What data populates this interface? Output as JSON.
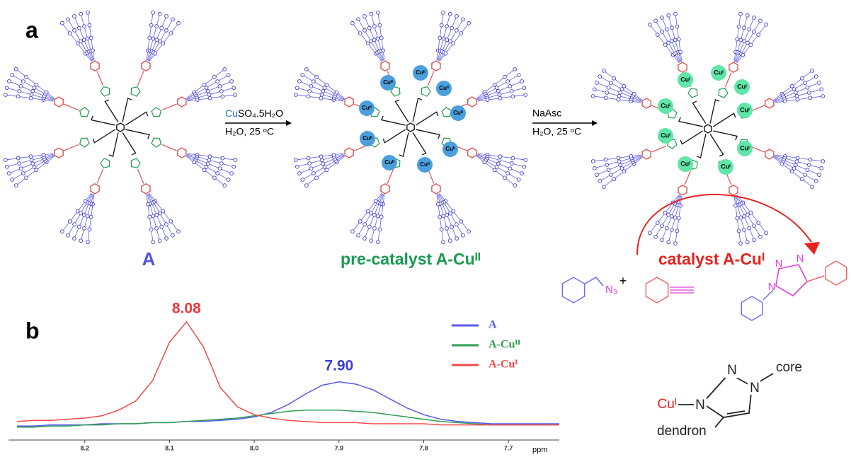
{
  "panel_a": {
    "label": "a",
    "reagent1_cu": "Cu",
    "reagent1_rest": "SO₄.5H₂O",
    "condition1": "H₂O, 25 ᵒC",
    "reagent2": "NaAsc",
    "condition2": "H₂O, 25 ᵒC",
    "compound_a": "A",
    "precatalyst": "pre-catalyst A-Cuᴵᴵ",
    "catalyst": "catalyst A-Cuᴵ",
    "cu_ii": "Cuᴵᴵ",
    "cu_i": "Cuᴵ",
    "azide": "N₃",
    "plus": "+",
    "nitrogen": "N"
  },
  "structure": {
    "copper": "Cuᴵ",
    "nitrogen": "N",
    "core": "core",
    "dendron": "dendron"
  },
  "panel_b": {
    "label": "b"
  },
  "chart_data": {
    "type": "line",
    "x_label": "ppm",
    "x": [
      8.28,
      8.26,
      8.24,
      8.22,
      8.2,
      8.18,
      8.16,
      8.14,
      8.12,
      8.1,
      8.08,
      8.06,
      8.04,
      8.02,
      8,
      7.98,
      7.96,
      7.94,
      7.92,
      7.9,
      7.88,
      7.86,
      7.84,
      7.82,
      7.8,
      7.78,
      7.76,
      7.74,
      7.72,
      7.7,
      7.68,
      7.66,
      7.64
    ],
    "series": [
      {
        "name": "A",
        "color": "#5a5af0",
        "values": [
          8,
          8,
          9,
          9,
          9,
          10,
          10,
          10,
          11,
          11,
          12,
          12,
          13,
          14,
          16,
          20,
          27,
          36,
          44,
          47,
          45,
          40,
          32,
          24,
          18,
          14,
          12,
          11,
          10,
          10,
          10,
          10,
          10
        ]
      },
      {
        "name": "A-Cuᴵᴵ",
        "color": "#2e9e55",
        "values": [
          7,
          7,
          8,
          8,
          9,
          9,
          10,
          10,
          11,
          11,
          12,
          13,
          14,
          15,
          17,
          19,
          21,
          22,
          22,
          22,
          21,
          20,
          18,
          16,
          14,
          12,
          11,
          10,
          9,
          9,
          9,
          9,
          9
        ]
      },
      {
        "name": "A-Cuᴵ",
        "color": "#f24a4a",
        "values": [
          12,
          13,
          13,
          14,
          15,
          17,
          22,
          30,
          48,
          82,
          100,
          78,
          42,
          25,
          18,
          15,
          13,
          12,
          11,
          11,
          11,
          10,
          10,
          10,
          10,
          9,
          9,
          9,
          9,
          9,
          9,
          9,
          9
        ]
      }
    ],
    "xlim": [
      8.29,
      7.64
    ],
    "ylim": [
      0,
      100
    ],
    "xticks": [
      8.2,
      8.1,
      {
        "value": 8,
        "label": "8.0"
      },
      7.9,
      7.8,
      7.7
    ],
    "peak_labels": [
      {
        "value": 8.08,
        "label": "8.08",
        "color": "#f03535"
      },
      {
        "value": 7.9,
        "label": "7.90",
        "color": "#3a3ae0"
      }
    ],
    "grid": false
  }
}
